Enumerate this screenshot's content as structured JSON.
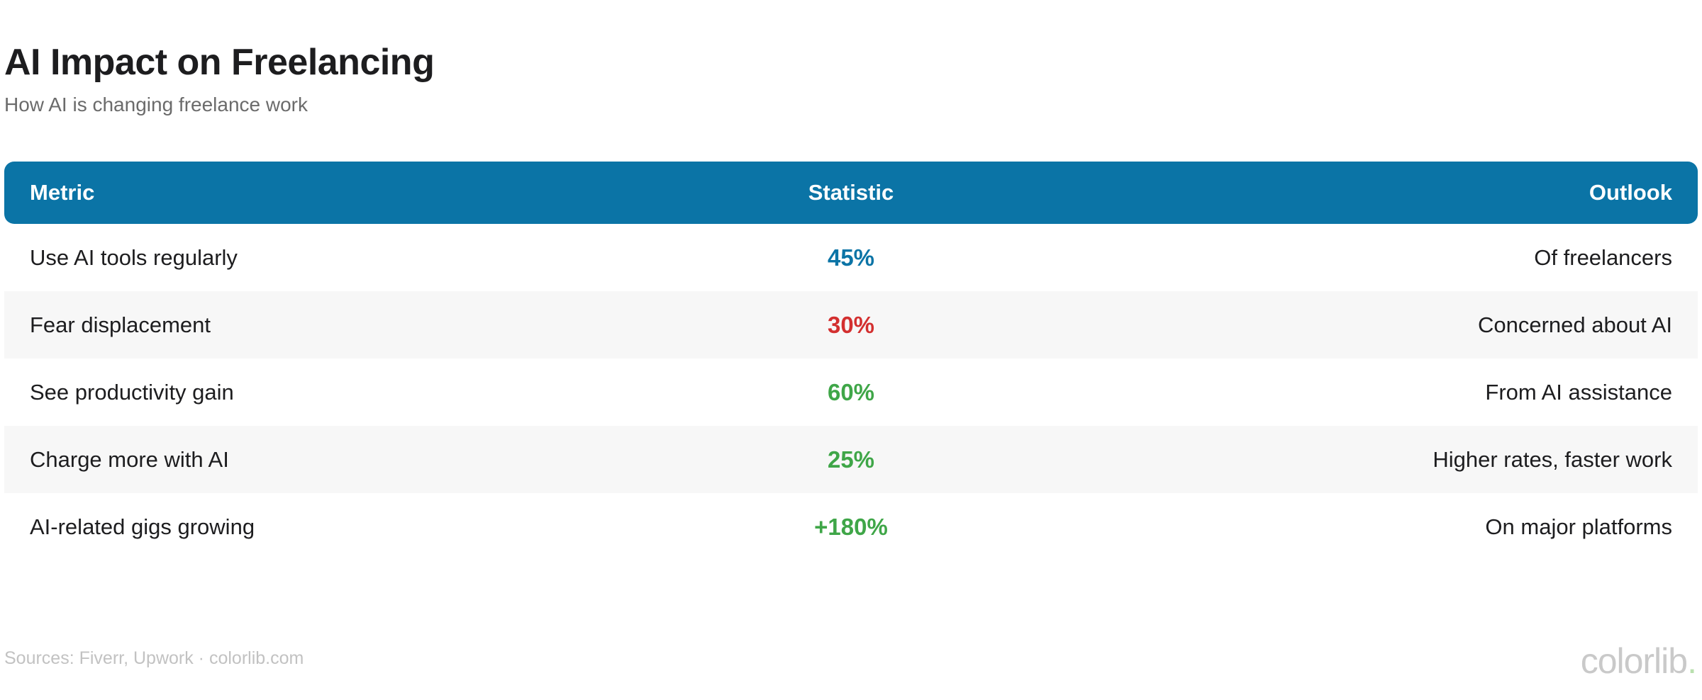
{
  "page": {
    "title": "AI Impact on Freelancing",
    "subtitle": "How AI is changing freelance work",
    "footer_sources": "Sources: Fiverr, Upwork · colorlib.com",
    "brand": {
      "name": "colorlib",
      "dot": "."
    }
  },
  "colors": {
    "header_bg": "#0b74a6",
    "stat_blue": "#0b74a6",
    "stat_red": "#d32f2f",
    "stat_green": "#3fa648",
    "row_alt_bg": "#f7f7f7",
    "title_text": "#1d1d1f",
    "subtitle_text": "#6b6b6b",
    "footer_text": "#c2c2c2"
  },
  "chart_data": {
    "type": "table",
    "title": "AI Impact on Freelancing",
    "subtitle": "How AI is changing freelance work",
    "columns": [
      "Metric",
      "Statistic",
      "Outlook"
    ],
    "rows": [
      {
        "metric": "Use AI tools regularly",
        "statistic": "45%",
        "stat_color": "blue",
        "outlook": "Of freelancers"
      },
      {
        "metric": "Fear displacement",
        "statistic": "30%",
        "stat_color": "red",
        "outlook": "Concerned about AI"
      },
      {
        "metric": "See productivity gain",
        "statistic": "60%",
        "stat_color": "green",
        "outlook": "From AI assistance"
      },
      {
        "metric": "Charge more with AI",
        "statistic": "25%",
        "stat_color": "green",
        "outlook": "Higher rates, faster work"
      },
      {
        "metric": "AI-related gigs growing",
        "statistic": "+180%",
        "stat_color": "green",
        "outlook": "On major platforms"
      }
    ]
  }
}
